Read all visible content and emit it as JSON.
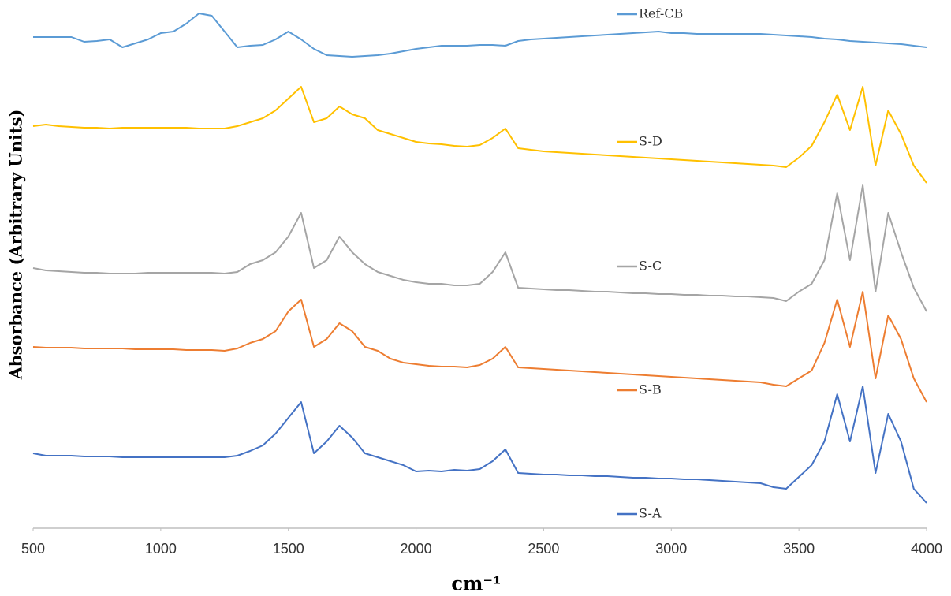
{
  "chart_data": {
    "type": "line",
    "x_label": "cm⁻¹",
    "y_label": "Absorbance (Arbitrary Units)",
    "x": [
      500,
      550,
      600,
      650,
      700,
      750,
      800,
      850,
      900,
      950,
      1000,
      1050,
      1100,
      1150,
      1200,
      1250,
      1300,
      1350,
      1400,
      1450,
      1500,
      1550,
      1600,
      1650,
      1700,
      1750,
      1800,
      1850,
      1900,
      1950,
      2000,
      2050,
      2100,
      2150,
      2200,
      2250,
      2300,
      2350,
      2400,
      2450,
      2500,
      2550,
      2600,
      2650,
      2700,
      2750,
      2800,
      2850,
      2900,
      2950,
      3000,
      3050,
      3100,
      3150,
      3200,
      3250,
      3300,
      3350,
      3400,
      3450,
      3500,
      3550,
      3600,
      3650,
      3700,
      3750,
      3800,
      3850,
      3900,
      3950,
      4000
    ],
    "xlim": [
      500,
      4000
    ],
    "xticks": [
      500,
      1000,
      1500,
      2000,
      2500,
      3000,
      3500,
      4000
    ],
    "ylim": [
      0,
      660
    ],
    "series": [
      {
        "name": "Ref-CB",
        "color": "#5b9bd5",
        "values": [
          623,
          623,
          623,
          623,
          617,
          618,
          620,
          610,
          615,
          620,
          628,
          630,
          640,
          653,
          650,
          630,
          610,
          612,
          613,
          620,
          630,
          620,
          608,
          600,
          599,
          598,
          599,
          600,
          602,
          605,
          608,
          610,
          612,
          612,
          612,
          613,
          613,
          612,
          618,
          620,
          621,
          622,
          623,
          624,
          625,
          626,
          627,
          628,
          629,
          630,
          628,
          628,
          627,
          627,
          627,
          627,
          627,
          627,
          626,
          625,
          624,
          623,
          621,
          620,
          618,
          617,
          616,
          615,
          614,
          612,
          610
        ]
      },
      {
        "name": "S-D",
        "color": "#ffc000",
        "values": [
          510,
          512,
          510,
          509,
          508,
          508,
          507,
          508,
          508,
          508,
          508,
          508,
          508,
          507,
          507,
          507,
          510,
          515,
          520,
          530,
          545,
          560,
          515,
          520,
          535,
          525,
          520,
          505,
          500,
          495,
          490,
          488,
          487,
          485,
          484,
          486,
          495,
          507,
          482,
          480,
          478,
          477,
          476,
          475,
          474,
          473,
          472,
          471,
          470,
          469,
          468,
          467,
          466,
          465,
          464,
          463,
          462,
          461,
          460,
          458,
          470,
          485,
          515,
          550,
          505,
          560,
          460,
          530,
          500,
          460,
          438
        ]
      },
      {
        "name": "S-C",
        "color": "#a5a5a5",
        "values": [
          330,
          327,
          326,
          325,
          324,
          324,
          323,
          323,
          323,
          324,
          324,
          324,
          324,
          324,
          324,
          323,
          325,
          335,
          340,
          350,
          370,
          400,
          330,
          340,
          370,
          350,
          335,
          325,
          320,
          315,
          312,
          310,
          310,
          308,
          308,
          310,
          325,
          350,
          305,
          304,
          303,
          302,
          302,
          301,
          300,
          300,
          299,
          298,
          298,
          297,
          297,
          296,
          296,
          295,
          295,
          294,
          294,
          293,
          292,
          288,
          300,
          310,
          340,
          425,
          340,
          435,
          300,
          400,
          350,
          305,
          275
        ]
      },
      {
        "name": "S-B",
        "color": "#ed7d31",
        "values": [
          230,
          229,
          229,
          229,
          228,
          228,
          228,
          228,
          227,
          227,
          227,
          227,
          226,
          226,
          226,
          225,
          228,
          235,
          240,
          250,
          275,
          290,
          230,
          240,
          260,
          250,
          230,
          225,
          215,
          210,
          208,
          206,
          205,
          205,
          204,
          207,
          215,
          230,
          204,
          203,
          202,
          201,
          200,
          199,
          198,
          197,
          196,
          195,
          194,
          193,
          192,
          191,
          190,
          189,
          188,
          187,
          186,
          185,
          182,
          180,
          190,
          200,
          235,
          290,
          230,
          300,
          190,
          270,
          240,
          190,
          160
        ]
      },
      {
        "name": "S-A",
        "color": "#4472c4",
        "values": [
          95,
          92,
          92,
          92,
          91,
          91,
          91,
          90,
          90,
          90,
          90,
          90,
          90,
          90,
          90,
          90,
          92,
          98,
          105,
          120,
          140,
          160,
          95,
          110,
          130,
          115,
          95,
          90,
          85,
          80,
          72,
          73,
          72,
          74,
          73,
          75,
          85,
          100,
          70,
          69,
          68,
          68,
          67,
          67,
          66,
          66,
          65,
          64,
          64,
          63,
          63,
          62,
          62,
          61,
          60,
          59,
          58,
          57,
          52,
          50,
          65,
          80,
          110,
          170,
          110,
          180,
          70,
          145,
          110,
          50,
          32
        ]
      }
    ]
  }
}
